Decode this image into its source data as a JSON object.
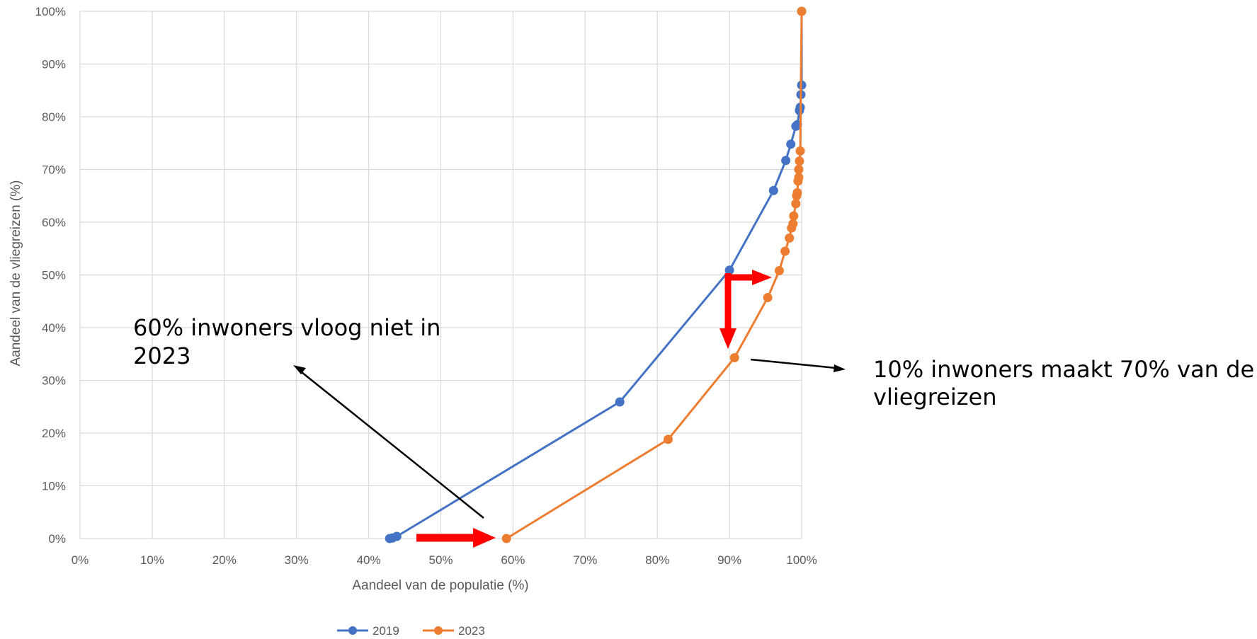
{
  "chart_data": {
    "type": "line",
    "xlabel": "Aandeel van de populatie (%)",
    "ylabel": "Aandeel van de vliegreizen (%)",
    "xlim": [
      0,
      100
    ],
    "ylim": [
      0,
      100
    ],
    "x_ticks": [
      "0%",
      "10%",
      "20%",
      "30%",
      "40%",
      "50%",
      "60%",
      "70%",
      "80%",
      "90%",
      "100%"
    ],
    "y_ticks": [
      "0%",
      "10%",
      "20%",
      "30%",
      "40%",
      "50%",
      "60%",
      "70%",
      "80%",
      "90%",
      "100%"
    ],
    "grid": true,
    "legend_position": "bottom",
    "series": [
      {
        "name": "2019",
        "color": "#4472c4",
        "points": [
          [
            42.9,
            0.0
          ],
          [
            43.3,
            0.1
          ],
          [
            43.9,
            0.4
          ],
          [
            74.8,
            25.9
          ],
          [
            90.0,
            50.9
          ],
          [
            96.1,
            66.0
          ],
          [
            97.8,
            71.7
          ],
          [
            98.5,
            74.8
          ],
          [
            99.2,
            78.2
          ],
          [
            99.4,
            78.5
          ],
          [
            99.7,
            81.2
          ],
          [
            99.8,
            81.8
          ],
          [
            99.9,
            84.2
          ],
          [
            100.0,
            86.0
          ],
          [
            100.0,
            100.0
          ]
        ]
      },
      {
        "name": "2023",
        "color": "#ed7d31",
        "points": [
          [
            59.1,
            0.0
          ],
          [
            81.5,
            18.8
          ],
          [
            90.7,
            34.3
          ],
          [
            95.3,
            45.7
          ],
          [
            96.9,
            50.8
          ],
          [
            97.7,
            54.5
          ],
          [
            98.3,
            57.0
          ],
          [
            98.6,
            58.9
          ],
          [
            98.8,
            59.7
          ],
          [
            98.9,
            61.2
          ],
          [
            99.2,
            63.5
          ],
          [
            99.3,
            65.0
          ],
          [
            99.4,
            65.6
          ],
          [
            99.5,
            67.8
          ],
          [
            99.6,
            68.5
          ],
          [
            99.6,
            70.0
          ],
          [
            99.7,
            71.6
          ],
          [
            99.8,
            73.5
          ],
          [
            100.0,
            100.0
          ]
        ]
      }
    ],
    "annotations": [
      {
        "id": "left",
        "lines": [
          "60% inwoners vloog niet in",
          "2023"
        ]
      },
      {
        "id": "right",
        "lines": [
          "10% inwoners maakt 70% van de",
          "vliegreizen"
        ]
      }
    ]
  }
}
